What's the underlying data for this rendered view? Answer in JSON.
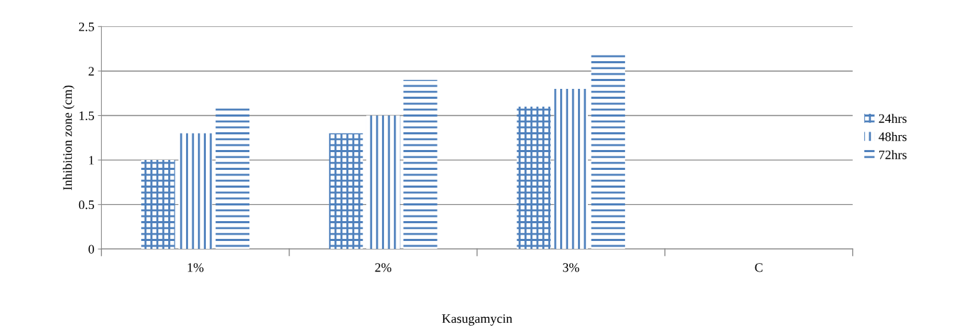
{
  "chart_data": {
    "type": "bar",
    "xlabel": "Kasugamycin",
    "ylabel": "Inhibition zone (cm)",
    "categories": [
      "1%",
      "2%",
      "3%",
      "C"
    ],
    "series": [
      {
        "name": "24hrs",
        "color": "#4f81bd",
        "values": [
          1.0,
          1.3,
          1.6,
          0
        ]
      },
      {
        "name": "48hrs",
        "color": "#4f81bd",
        "values": [
          1.3,
          1.5,
          1.8,
          0
        ]
      },
      {
        "name": "72hrs",
        "color": "#4f81bd",
        "values": [
          1.6,
          1.9,
          2.2,
          0
        ]
      }
    ],
    "ylim": [
      0,
      2.5
    ],
    "yticks": [
      0,
      0.5,
      1,
      1.5,
      2,
      2.5
    ],
    "grid": "y",
    "legend": "right"
  }
}
